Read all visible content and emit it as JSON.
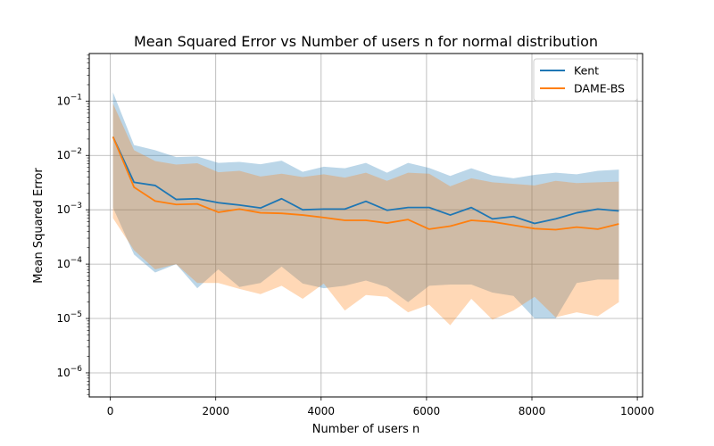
{
  "chart_data": {
    "type": "line",
    "title": "Mean Squared Error vs Number of users n for normal distribution",
    "xlabel": "Number of users n",
    "ylabel": "Mean Squared Error",
    "xscale": "linear",
    "yscale": "log",
    "xlim": [
      -400,
      10100
    ],
    "ylim": [
      3.6e-07,
      0.75
    ],
    "xticks": [
      0,
      2000,
      4000,
      6000,
      8000,
      10000
    ],
    "xtick_labels": [
      "0",
      "2000",
      "4000",
      "6000",
      "8000",
      "10000"
    ],
    "yticks": [
      1e-06,
      1e-05,
      0.0001,
      0.001,
      0.01,
      0.1
    ],
    "ytick_labels": [
      "10",
      "10",
      "10",
      "10",
      "10",
      "10"
    ],
    "ytick_exponents": [
      "−6",
      "−5",
      "−4",
      "−3",
      "−2",
      "−1"
    ],
    "grid": true,
    "legend_position": "top-right",
    "x": [
      50,
      450,
      850,
      1250,
      1650,
      2050,
      2450,
      2850,
      3250,
      3650,
      4050,
      4450,
      4850,
      5250,
      5650,
      6050,
      6450,
      6850,
      7250,
      7650,
      8050,
      8450,
      8850,
      9250,
      9650
    ],
    "series": [
      {
        "name": "Kent",
        "color": "#1f77b4",
        "values": [
          0.022,
          0.0032,
          0.0028,
          0.00155,
          0.0016,
          0.00135,
          0.00122,
          0.00108,
          0.0016,
          0.001,
          0.00103,
          0.00103,
          0.00143,
          0.00098,
          0.0011,
          0.0011,
          0.0008,
          0.0011,
          0.00068,
          0.00075,
          0.00056,
          0.00068,
          0.00088,
          0.00103,
          0.00095
        ],
        "band_upper": [
          0.145,
          0.0155,
          0.0125,
          0.0093,
          0.0096,
          0.0073,
          0.0076,
          0.0069,
          0.008,
          0.005,
          0.0062,
          0.0058,
          0.0073,
          0.0048,
          0.0073,
          0.0059,
          0.0042,
          0.0058,
          0.0043,
          0.0038,
          0.0044,
          0.0048,
          0.0045,
          0.0052,
          0.0055
        ],
        "band_lower": [
          0.0011,
          0.00015,
          7e-05,
          0.0001,
          3.6e-05,
          8e-05,
          3.8e-05,
          4.5e-05,
          9e-05,
          4.4e-05,
          3.6e-05,
          4e-05,
          5e-05,
          3.8e-05,
          2e-05,
          4e-05,
          4.2e-05,
          4.2e-05,
          3e-05,
          2.6e-05,
          1e-05,
          1e-05,
          4.5e-05,
          5.2e-05,
          5.2e-05
        ]
      },
      {
        "name": "DAME-BS",
        "color": "#ff7f0e",
        "values": [
          0.022,
          0.0026,
          0.00145,
          0.00125,
          0.00128,
          0.0009,
          0.00103,
          0.00088,
          0.00086,
          0.0008,
          0.00072,
          0.00064,
          0.00064,
          0.00057,
          0.00066,
          0.00044,
          0.0005,
          0.00064,
          0.0006,
          0.00052,
          0.00045,
          0.00043,
          0.00048,
          0.00044,
          0.00055
        ],
        "band_upper": [
          0.09,
          0.0125,
          0.0079,
          0.0068,
          0.0072,
          0.0049,
          0.0052,
          0.0041,
          0.0046,
          0.004,
          0.0045,
          0.0039,
          0.0048,
          0.0034,
          0.0048,
          0.0046,
          0.0027,
          0.0038,
          0.0032,
          0.003,
          0.0028,
          0.0034,
          0.0031,
          0.0032,
          0.0033
        ],
        "band_lower": [
          0.0007,
          0.00018,
          8e-05,
          0.0001,
          4.5e-05,
          4.5e-05,
          3.5e-05,
          2.8e-05,
          4e-05,
          2.3e-05,
          4.4e-05,
          1.4e-05,
          2.7e-05,
          2.5e-05,
          1.3e-05,
          1.8e-05,
          7.5e-06,
          2.3e-05,
          9.5e-06,
          1.4e-05,
          2.5e-05,
          1.05e-05,
          1.3e-05,
          1.1e-05,
          2e-05
        ]
      }
    ]
  }
}
